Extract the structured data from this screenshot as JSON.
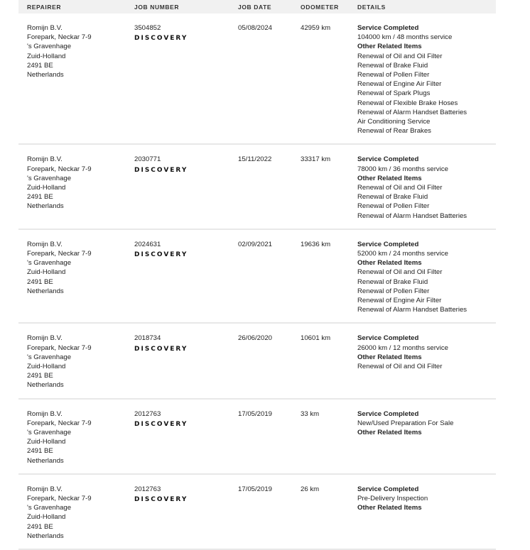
{
  "headers": [
    "REPAIRER",
    "JOB NUMBER",
    "JOB DATE",
    "ODOMETER",
    "DETAILS"
  ],
  "brand_logo": "DISCOVERY",
  "rows": [
    {
      "repairer": [
        "Romijn B.V.",
        "Forepark, Neckar 7-9",
        "'s Gravenhage",
        "Zuid-Holland",
        "2491 BE",
        "Netherlands"
      ],
      "job": "3504852",
      "date": "05/08/2024",
      "odometer": "42959 km",
      "details": [
        {
          "t": "Service Completed",
          "b": true
        },
        {
          "t": "104000 km / 48 months service"
        },
        {
          "t": "Other Related Items",
          "b": true
        },
        {
          "t": "Renewal of Oil and Oil Filter"
        },
        {
          "t": "Renewal of Brake Fluid"
        },
        {
          "t": "Renewal of Pollen Filter"
        },
        {
          "t": "Renewal of Engine Air Filter"
        },
        {
          "t": "Renewal of Spark Plugs"
        },
        {
          "t": "Renewal of Flexible Brake Hoses"
        },
        {
          "t": "Renewal of Alarm Handset Batteries"
        },
        {
          "t": "Air Conditioning Service"
        },
        {
          "t": "Renewal of Rear Brakes"
        }
      ]
    },
    {
      "repairer": [
        "Romijn B.V.",
        "Forepark, Neckar 7-9",
        "'s Gravenhage",
        "Zuid-Holland",
        "2491 BE",
        "Netherlands"
      ],
      "job": "2030771",
      "date": "15/11/2022",
      "odometer": "33317 km",
      "details": [
        {
          "t": "Service Completed",
          "b": true
        },
        {
          "t": "78000 km / 36 months service"
        },
        {
          "t": "Other Related Items",
          "b": true
        },
        {
          "t": "Renewal of Oil and Oil Filter"
        },
        {
          "t": "Renewal of Brake Fluid"
        },
        {
          "t": "Renewal of Pollen Filter"
        },
        {
          "t": "Renewal of Alarm Handset Batteries"
        }
      ]
    },
    {
      "repairer": [
        "Romijn B.V.",
        "Forepark, Neckar 7-9",
        "'s Gravenhage",
        "Zuid-Holland",
        "2491 BE",
        "Netherlands"
      ],
      "job": "2024631",
      "date": "02/09/2021",
      "odometer": "19636 km",
      "details": [
        {
          "t": "Service Completed",
          "b": true
        },
        {
          "t": "52000 km / 24 months service"
        },
        {
          "t": "Other Related Items",
          "b": true
        },
        {
          "t": "Renewal of Oil and Oil Filter"
        },
        {
          "t": "Renewal of Brake Fluid"
        },
        {
          "t": "Renewal of Pollen Filter"
        },
        {
          "t": "Renewal of Engine Air Filter"
        },
        {
          "t": "Renewal of Alarm Handset Batteries"
        }
      ]
    },
    {
      "repairer": [
        "Romijn B.V.",
        "Forepark, Neckar 7-9",
        "'s Gravenhage",
        "Zuid-Holland",
        "2491 BE",
        "Netherlands"
      ],
      "job": "2018734",
      "date": "26/06/2020",
      "odometer": "10601 km",
      "details": [
        {
          "t": "Service Completed",
          "b": true
        },
        {
          "t": "26000 km / 12 months service"
        },
        {
          "t": "Other Related Items",
          "b": true
        },
        {
          "t": "Renewal of Oil and Oil Filter"
        }
      ]
    },
    {
      "repairer": [
        "Romijn B.V.",
        "Forepark, Neckar 7-9",
        "'s Gravenhage",
        "Zuid-Holland",
        "2491 BE",
        "Netherlands"
      ],
      "job": "2012763",
      "date": "17/05/2019",
      "odometer": "33 km",
      "details": [
        {
          "t": "Service Completed",
          "b": true
        },
        {
          "t": "New/Used Preparation For Sale"
        },
        {
          "t": "Other Related Items",
          "b": true
        }
      ]
    },
    {
      "repairer": [
        "Romijn B.V.",
        "Forepark, Neckar 7-9",
        "'s Gravenhage",
        "Zuid-Holland",
        "2491 BE",
        "Netherlands"
      ],
      "job": "2012763",
      "date": "17/05/2019",
      "odometer": "26 km",
      "details": [
        {
          "t": "Service Completed",
          "b": true
        },
        {
          "t": "Pre-Delivery Inspection"
        },
        {
          "t": "Other Related Items",
          "b": true
        }
      ]
    }
  ]
}
